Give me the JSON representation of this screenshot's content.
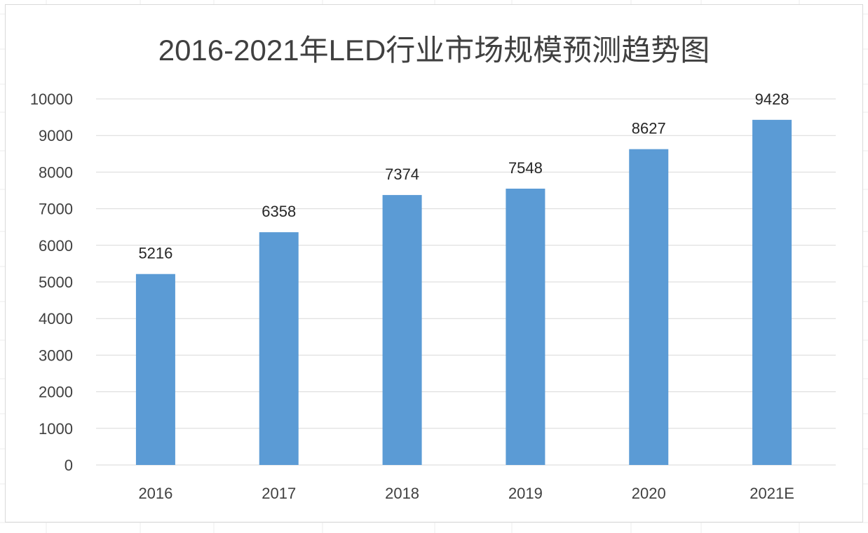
{
  "chart_data": {
    "type": "bar",
    "title": "2016-2021年LED行业市场规模预测趋势图",
    "categories": [
      "2016",
      "2017",
      "2018",
      "2019",
      "2020",
      "2021E"
    ],
    "values": [
      5216,
      6358,
      7374,
      7548,
      8627,
      9428
    ],
    "data_labels": [
      "5216",
      "6358",
      "7374",
      "7548",
      "8627",
      "9428"
    ],
    "ylim": [
      0,
      10000
    ],
    "yticks": [
      "0",
      "1000",
      "2000",
      "3000",
      "4000",
      "5000",
      "6000",
      "7000",
      "8000",
      "9000",
      "10000"
    ],
    "xlabel": "",
    "ylabel": "",
    "grid": true,
    "legend": "none",
    "bar_color": "#5b9bd5"
  }
}
